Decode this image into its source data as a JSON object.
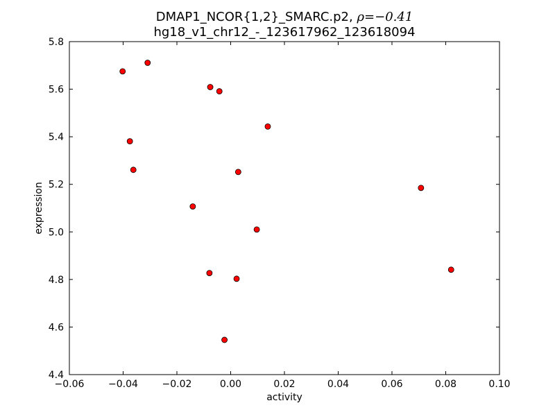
{
  "chart_data": {
    "type": "scatter",
    "title_line1_text": "DMAP1_NCOR{1,2}_SMARC.p2, ",
    "title_line1_rho_symbol": "ρ",
    "title_line1_rho_value": "=−0.41",
    "title_line2": "hg18_v1_chr12_-_123617962_123618094",
    "xlabel": "activity",
    "ylabel": "expression",
    "xlim": [
      -0.06,
      0.1
    ],
    "ylim": [
      4.4,
      5.8
    ],
    "x_ticks": [
      -0.06,
      -0.04,
      -0.02,
      0.0,
      0.02,
      0.04,
      0.06,
      0.08,
      0.1
    ],
    "x_tick_labels": [
      "−0.06",
      "−0.04",
      "−0.02",
      "0.00",
      "0.02",
      "0.04",
      "0.06",
      "0.08",
      "0.10"
    ],
    "y_ticks": [
      4.4,
      4.6,
      4.8,
      5.0,
      5.2,
      5.4,
      5.6,
      5.8
    ],
    "y_tick_labels": [
      "4.4",
      "4.6",
      "4.8",
      "5.0",
      "5.2",
      "5.4",
      "5.6",
      "5.8"
    ],
    "grid": false,
    "marker_color": "#ff0000",
    "marker_edge_color": "#000000",
    "points": [
      {
        "x": -0.0402,
        "y": 5.675
      },
      {
        "x": -0.0309,
        "y": 5.711
      },
      {
        "x": -0.0076,
        "y": 5.609
      },
      {
        "x": -0.0042,
        "y": 5.591
      },
      {
        "x": 0.0138,
        "y": 5.443
      },
      {
        "x": -0.0375,
        "y": 5.381
      },
      {
        "x": -0.0362,
        "y": 5.261
      },
      {
        "x": 0.0028,
        "y": 5.252
      },
      {
        "x": 0.0708,
        "y": 5.185
      },
      {
        "x": -0.0141,
        "y": 5.107
      },
      {
        "x": 0.0097,
        "y": 5.01
      },
      {
        "x": -0.0079,
        "y": 4.827
      },
      {
        "x": 0.0022,
        "y": 4.803
      },
      {
        "x": 0.082,
        "y": 4.841
      },
      {
        "x": -0.0023,
        "y": 4.546
      }
    ]
  }
}
